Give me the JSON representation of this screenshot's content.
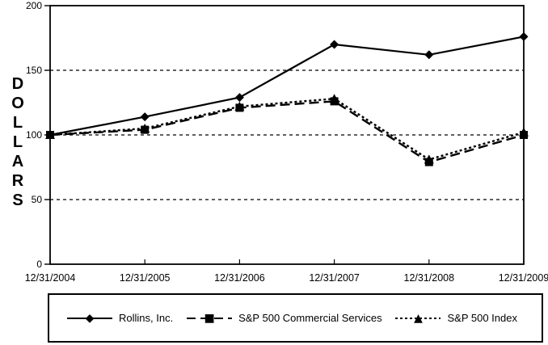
{
  "figure": {
    "background": "#ffffff",
    "ink": "#000000"
  },
  "chart_data": {
    "type": "line",
    "title": "",
    "xlabel": "",
    "ylabel": "DOLLARS",
    "ylim": [
      0,
      200
    ],
    "yticks": [
      0,
      50,
      100,
      150,
      200
    ],
    "gridlines": [
      50,
      100,
      150
    ],
    "grid": "horizontal-dashed",
    "legend_position": "bottom-boxed",
    "categories": [
      "12/31/2004",
      "12/31/2005",
      "12/31/2006",
      "12/31/2007",
      "12/31/2008",
      "12/31/2009"
    ],
    "series": [
      {
        "name": "Rollins, Inc.",
        "line_style": "solid",
        "marker": "diamond",
        "color": "#000000",
        "values": [
          100,
          114,
          129,
          170,
          162,
          176
        ]
      },
      {
        "name": "S&P 500 Commercial Services",
        "line_style": "dashed",
        "marker": "square",
        "color": "#000000",
        "values": [
          100,
          104,
          121,
          126,
          79,
          100
        ]
      },
      {
        "name": "S&P 500 Index",
        "line_style": "dotted",
        "marker": "triangle",
        "color": "#000000",
        "values": [
          100,
          105,
          122,
          128,
          81,
          102
        ]
      }
    ]
  },
  "legend": {
    "glyphs": [
      {
        "icon": "diamond-marker-icon",
        "char": "◆"
      },
      {
        "icon": "square-marker-icon",
        "char": "■"
      },
      {
        "icon": "triangle-marker-icon",
        "char": "▲"
      }
    ]
  }
}
